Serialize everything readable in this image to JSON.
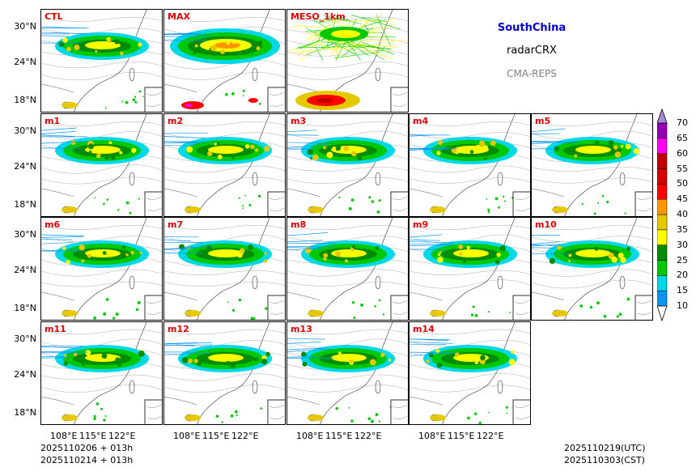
{
  "header": {
    "region": "SouthChina",
    "variable": "radarCRX",
    "system": "CMA-REPS",
    "region_color": "#0000d0",
    "system_color": "#808080"
  },
  "panels": [
    {
      "label": "CTL",
      "style": "normal"
    },
    {
      "label": "MAX",
      "style": "max"
    },
    {
      "label": "MESO_1km",
      "style": "meso"
    },
    {
      "label": "m1",
      "style": "normal"
    },
    {
      "label": "m2",
      "style": "normal"
    },
    {
      "label": "m3",
      "style": "normal"
    },
    {
      "label": "m4",
      "style": "normal"
    },
    {
      "label": "m5",
      "style": "normal"
    },
    {
      "label": "m6",
      "style": "normal"
    },
    {
      "label": "m7",
      "style": "normal"
    },
    {
      "label": "m8",
      "style": "normal"
    },
    {
      "label": "m9",
      "style": "normal"
    },
    {
      "label": "m10",
      "style": "normal"
    },
    {
      "label": "m11",
      "style": "normal"
    },
    {
      "label": "m12",
      "style": "normal"
    },
    {
      "label": "m13",
      "style": "normal"
    },
    {
      "label": "m14",
      "style": "normal"
    }
  ],
  "axes": {
    "lat_ticks": [
      "30°N",
      "24°N",
      "18°N"
    ],
    "lon_ticks": [
      "108°E",
      "115°E",
      "122°E"
    ]
  },
  "colorbar": {
    "levels": [
      "10",
      "15",
      "20",
      "25",
      "30",
      "35",
      "40",
      "45",
      "50",
      "55",
      "60",
      "65",
      "70"
    ],
    "colors": [
      "#0a96f0",
      "#00d8e8",
      "#00c800",
      "#008c00",
      "#ffff00",
      "#e6c800",
      "#ff9600",
      "#ff0000",
      "#d60000",
      "#c00000",
      "#ff00f0",
      "#9600b4",
      "#a88cd8"
    ]
  },
  "footer": {
    "init_time_utc": "2025110206  +  013h",
    "init_time_cst": "2025110214  +  013h",
    "valid_utc": "2025110219(UTC)",
    "valid_cst": "2025110303(CST)"
  }
}
